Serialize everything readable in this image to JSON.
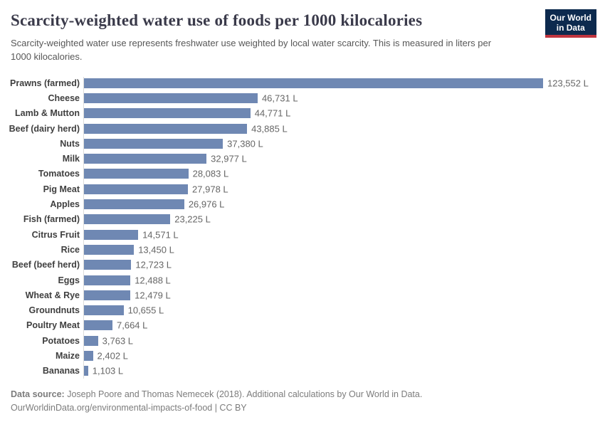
{
  "header": {
    "title": "Scarcity-weighted water use of foods per 1000 kilocalories",
    "subtitle": "Scarcity-weighted water use represents freshwater use weighted by local water scarcity. This is measured in liters per 1000 kilocalories.",
    "logo": {
      "line1": "Our World",
      "line2": "in Data"
    }
  },
  "chart_data": {
    "type": "bar",
    "orientation": "horizontal",
    "title": "Scarcity-weighted water use of foods per 1000 kilocalories",
    "xlabel": "",
    "ylabel": "",
    "unit": "liters per 1000 kilocalories",
    "xlim": [
      0,
      123552
    ],
    "grid": false,
    "legend": "none",
    "bar_color": "#6f88b3",
    "categories": [
      "Prawns (farmed)",
      "Cheese",
      "Lamb & Mutton",
      "Beef (dairy herd)",
      "Nuts",
      "Milk",
      "Tomatoes",
      "Pig Meat",
      "Apples",
      "Fish (farmed)",
      "Citrus Fruit",
      "Rice",
      "Beef (beef herd)",
      "Eggs",
      "Wheat & Rye",
      "Groundnuts",
      "Poultry Meat",
      "Potatoes",
      "Maize",
      "Bananas"
    ],
    "values": [
      123552,
      46731,
      44771,
      43885,
      37380,
      32977,
      28083,
      27978,
      26976,
      23225,
      14571,
      13450,
      12723,
      12488,
      12479,
      10655,
      7664,
      3763,
      2402,
      1103
    ],
    "value_labels": [
      "123,552 L",
      "46,731 L",
      "44,771 L",
      "43,885 L",
      "37,380 L",
      "32,977 L",
      "28,083 L",
      "27,978 L",
      "26,976 L",
      "23,225 L",
      "14,571 L",
      "13,450 L",
      "12,723 L",
      "12,488 L",
      "12,479 L",
      "10,655 L",
      "7,664 L",
      "3,763 L",
      "2,402 L",
      "1,103 L"
    ]
  },
  "footer": {
    "datasource_label": "Data source:",
    "datasource_text": " Joseph Poore and Thomas Nemecek (2018). Additional calculations by Our World in Data.",
    "url_line": "OurWorldinData.org/environmental-impacts-of-food | CC BY"
  },
  "colors": {
    "bar": "#6f88b3",
    "title": "#3a3a4a",
    "subtitle": "#575757",
    "category_label": "#3f3f3f",
    "value_label": "#666666",
    "footer_text": "#7c7c7c",
    "logo_background": "#0d2a4e",
    "logo_stripe": "#c0353f",
    "axis_line": "#dcdcdc"
  }
}
